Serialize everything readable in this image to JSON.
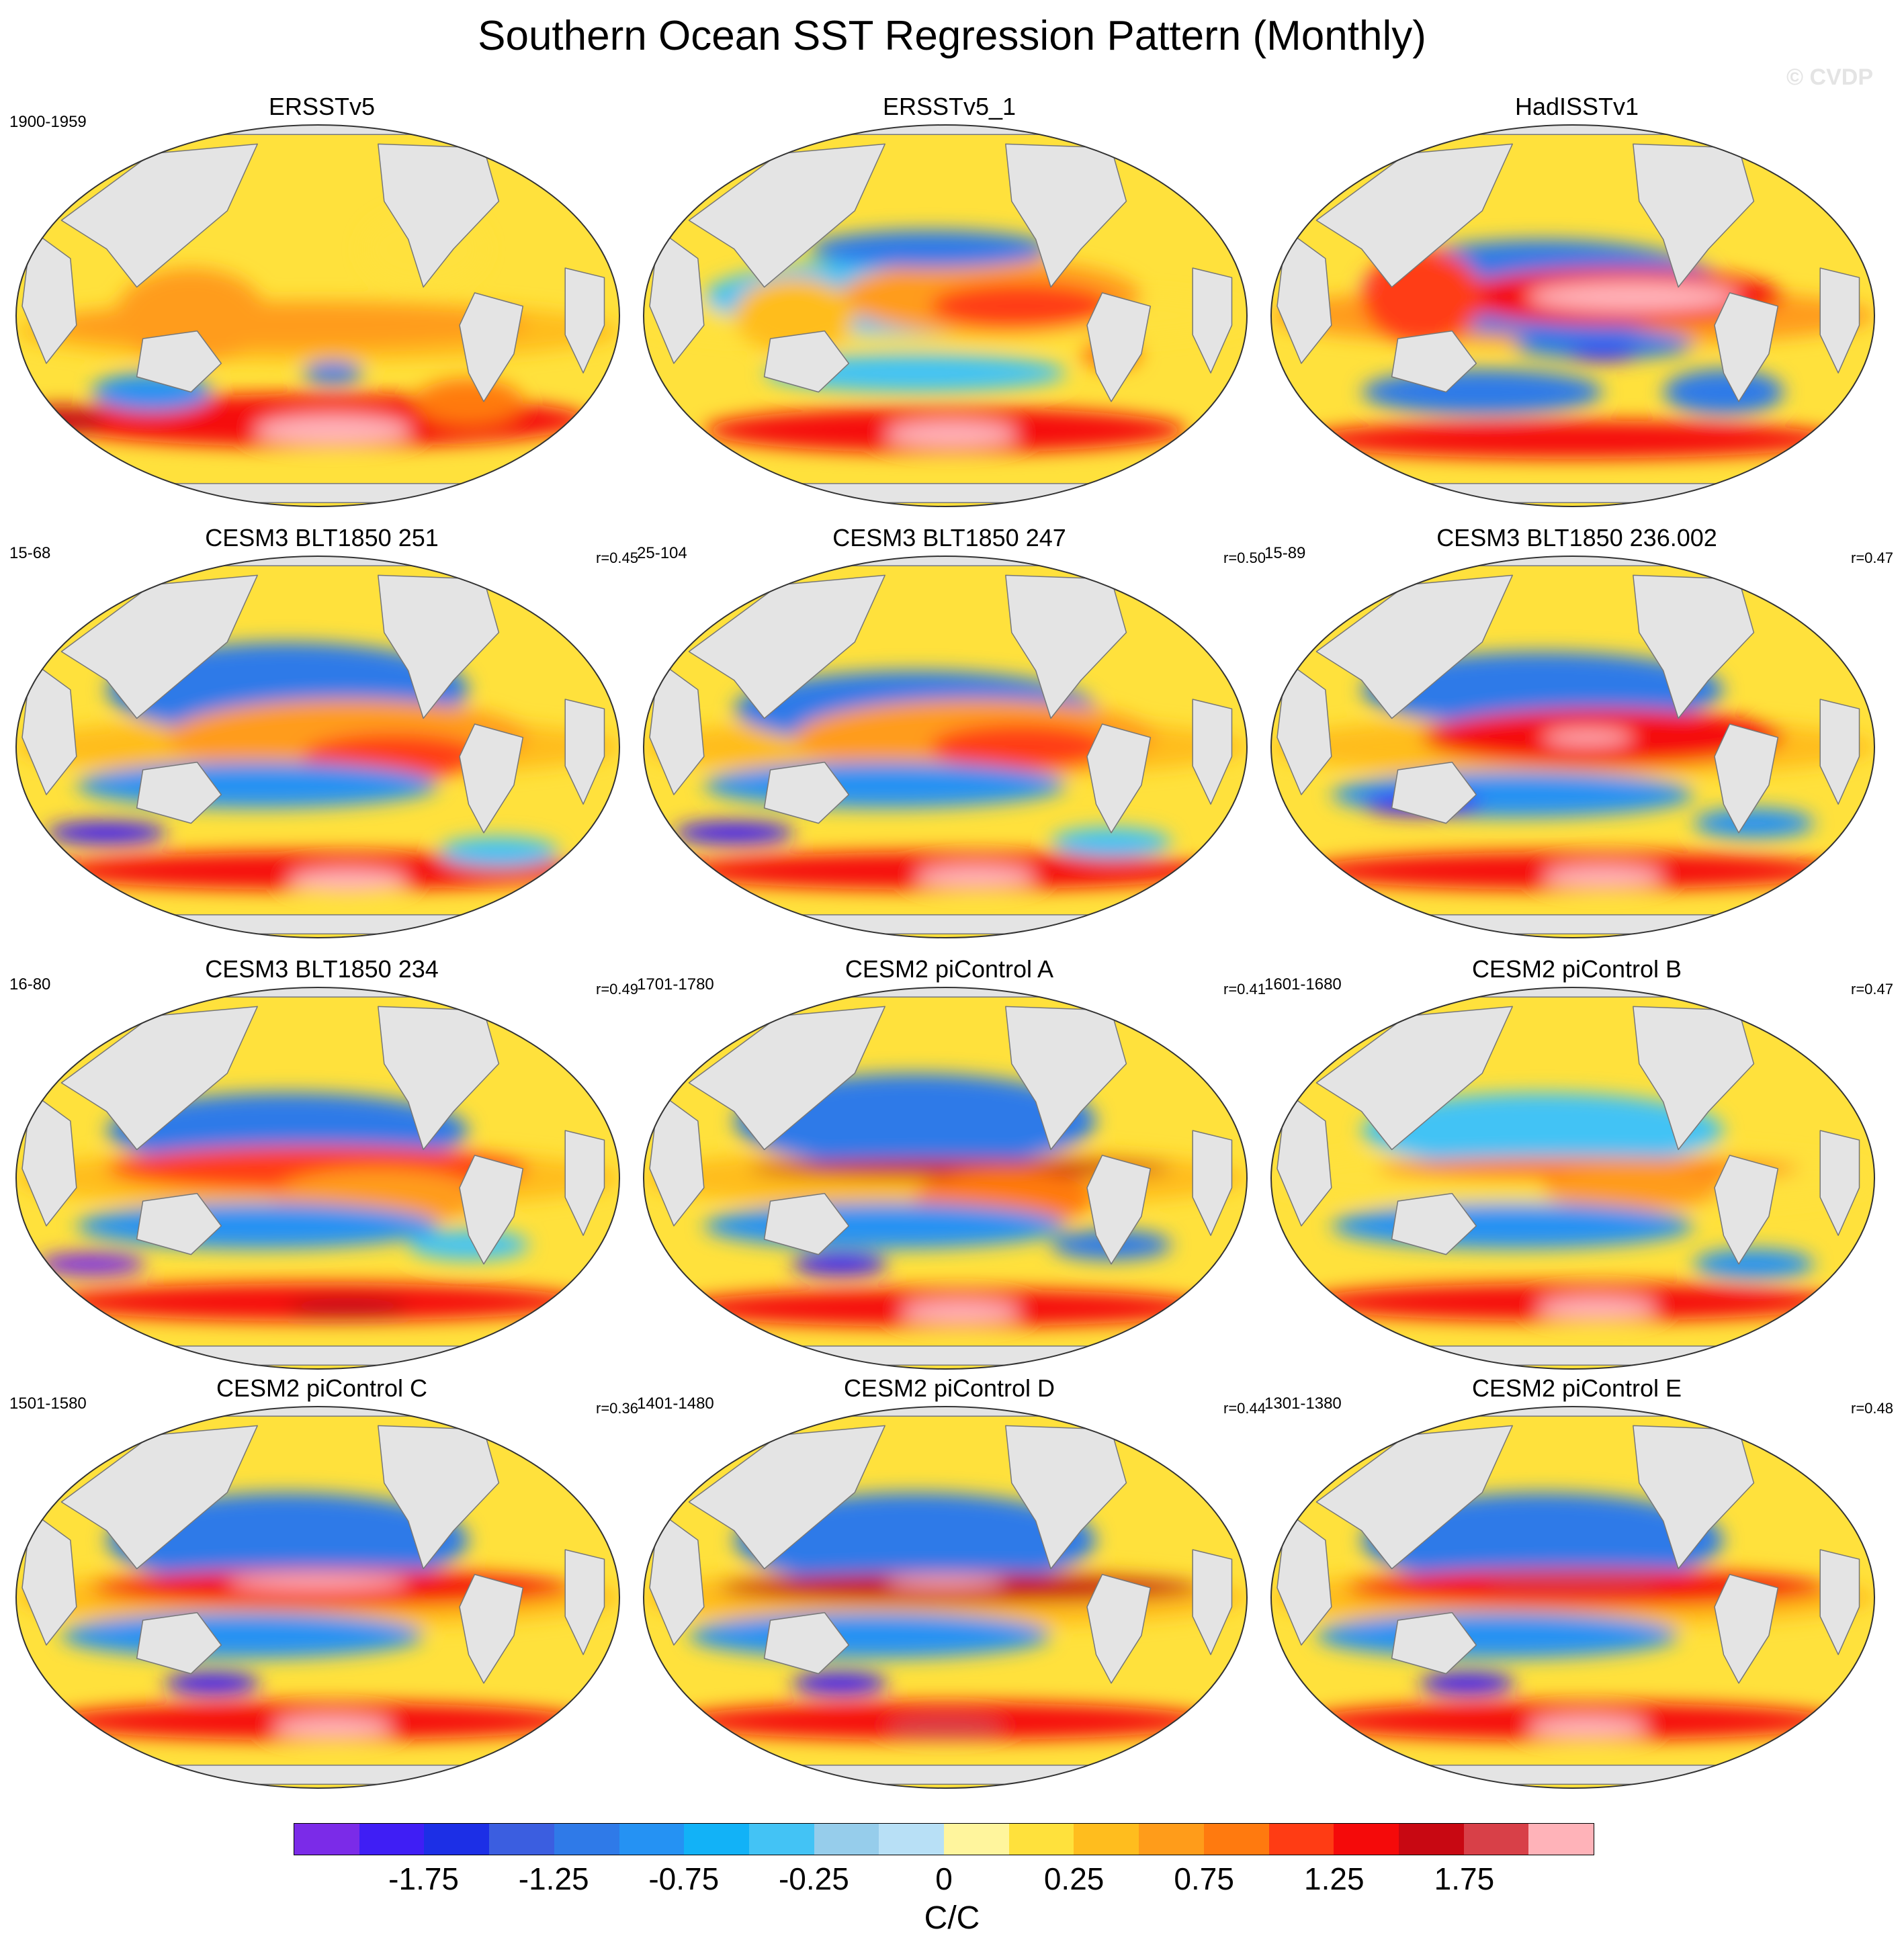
{
  "title": "Southern Ocean SST Regression Pattern (Monthly)",
  "watermark": "© CVDP",
  "chart_data": {
    "type": "heatmap",
    "title": "Southern Ocean SST Regression Pattern (Monthly)",
    "projection": "global ellipse (Robinson-like), Pacific-centered",
    "units": "C/C",
    "colorbar": {
      "levels": [
        -2.0,
        -1.75,
        -1.5,
        -1.25,
        -1.0,
        -0.75,
        -0.5,
        -0.25,
        -0.1,
        0,
        0.1,
        0.25,
        0.5,
        0.75,
        1.0,
        1.25,
        1.5,
        1.75,
        2.0
      ],
      "tick_labels": [
        "-1.75",
        "-1.25",
        "-0.75",
        "-0.25",
        "0",
        "0.25",
        "0.75",
        "1.25",
        "1.75"
      ],
      "tick_boundary_index": [
        1,
        3,
        5,
        7,
        9,
        11,
        13,
        15,
        17
      ],
      "colors": [
        "#7b2be8",
        "#3f1ef5",
        "#1c2fe6",
        "#3b5ee0",
        "#2f7ae8",
        "#2592f3",
        "#12b2f7",
        "#43c3f5",
        "#96cdeb",
        "#b8e0f6",
        "#fff59d",
        "#ffe13c",
        "#ffbd1e",
        "#ff9c1a",
        "#ff7a0f",
        "#ff3c14",
        "#f50a0a",
        "#c80812",
        "#d84048",
        "#ffb3b9"
      ]
    },
    "panels": [
      {
        "name": "ERSSTv5",
        "period": "1900-1959",
        "r": "",
        "blobs": [
          [
            "#ffbd1e",
            0.0,
            -0.08,
            0.16,
            1.0
          ],
          [
            "#ff9c1a",
            -0.1,
            -0.05,
            0.12,
            0.8
          ],
          [
            "#ffe13c",
            0.35,
            0.35,
            0.2,
            0.2
          ],
          [
            "#ff9c1a",
            -0.42,
            0.0,
            0.25,
            0.25
          ],
          [
            "#f50a0a",
            0.0,
            -0.55,
            0.14,
            0.9
          ],
          [
            "#ffb3b9",
            0.05,
            -0.6,
            0.08,
            0.26
          ],
          [
            "#2f7ae8",
            0.05,
            -0.3,
            0.06,
            0.1
          ],
          [
            "#2592f3",
            -0.55,
            -0.4,
            0.1,
            0.2
          ],
          [
            "#c80812",
            -0.85,
            -0.55,
            0.08,
            0.14
          ],
          [
            "#ff7a0f",
            0.5,
            -0.45,
            0.12,
            0.18
          ]
        ]
      },
      {
        "name": "ERSSTv5_1",
        "period": "",
        "r": "",
        "blobs": [
          [
            "#ffe13c",
            0.0,
            0.0,
            0.15,
            1.0
          ],
          [
            "#43c3f5",
            -0.1,
            0.1,
            0.2,
            0.7
          ],
          [
            "#ff9c1a",
            0.15,
            0.1,
            0.2,
            0.5
          ],
          [
            "#ff3c14",
            0.25,
            0.05,
            0.12,
            0.3
          ],
          [
            "#2f7ae8",
            -0.05,
            0.35,
            0.1,
            0.4
          ],
          [
            "#f50a0a",
            0.0,
            -0.6,
            0.12,
            0.8
          ],
          [
            "#ffb3b9",
            0.02,
            -0.62,
            0.07,
            0.22
          ],
          [
            "#43c3f5",
            -0.1,
            -0.3,
            0.1,
            0.5
          ],
          [
            "#ff7a0f",
            0.55,
            -0.2,
            0.08,
            0.1
          ],
          [
            "#ffbd1e",
            -0.5,
            0.0,
            0.2,
            0.2
          ]
        ]
      },
      {
        "name": "HadISSTv1",
        "period": "",
        "r": "",
        "blobs": [
          [
            "#ff9c1a",
            0.0,
            0.0,
            0.16,
            1.0
          ],
          [
            "#2f7ae8",
            -0.1,
            0.15,
            0.25,
            0.6
          ],
          [
            "#f50a0a",
            0.15,
            0.1,
            0.15,
            0.55
          ],
          [
            "#ffb3b9",
            0.2,
            0.1,
            0.08,
            0.35
          ],
          [
            "#2f7ae8",
            0.1,
            -0.15,
            0.08,
            0.3
          ],
          [
            "#3f1ef5",
            0.1,
            -0.2,
            0.04,
            0.12
          ],
          [
            "#2f7ae8",
            -0.3,
            -0.4,
            0.12,
            0.4
          ],
          [
            "#f50a0a",
            0.0,
            -0.65,
            0.1,
            0.9
          ],
          [
            "#ff3c14",
            -0.5,
            0.1,
            0.25,
            0.2
          ],
          [
            "#2f7ae8",
            0.5,
            -0.4,
            0.12,
            0.2
          ]
        ]
      },
      {
        "name": "CESM3 BLT1850 251",
        "period": "15-68",
        "r": "r=0.45",
        "blobs": [
          [
            "#ffbd1e",
            0.0,
            0.0,
            0.16,
            1.0
          ],
          [
            "#2f7ae8",
            -0.1,
            0.3,
            0.25,
            0.6
          ],
          [
            "#ff9c1a",
            0.1,
            0.05,
            0.2,
            0.6
          ],
          [
            "#ff3c14",
            0.25,
            -0.05,
            0.12,
            0.3
          ],
          [
            "#2592f3",
            -0.2,
            -0.2,
            0.12,
            0.6
          ],
          [
            "#3f1ef5",
            -0.7,
            -0.45,
            0.06,
            0.2
          ],
          [
            "#f50a0a",
            0.0,
            -0.65,
            0.1,
            0.9
          ],
          [
            "#ffb3b9",
            0.1,
            -0.7,
            0.06,
            0.2
          ],
          [
            "#c80812",
            -0.45,
            0.55,
            0.05,
            0.05
          ],
          [
            "#43c3f5",
            0.6,
            -0.55,
            0.08,
            0.2
          ]
        ]
      },
      {
        "name": "CESM3 BLT1850 247",
        "period": "25-104",
        "r": "r=0.50",
        "blobs": [
          [
            "#ffbd1e",
            0.0,
            0.0,
            0.16,
            1.0
          ],
          [
            "#2f7ae8",
            -0.1,
            0.2,
            0.2,
            0.6
          ],
          [
            "#ff9c1a",
            0.1,
            0.05,
            0.2,
            0.6
          ],
          [
            "#ff3c14",
            0.25,
            0.0,
            0.12,
            0.3
          ],
          [
            "#2592f3",
            -0.2,
            -0.2,
            0.12,
            0.6
          ],
          [
            "#3f1ef5",
            -0.7,
            -0.45,
            0.06,
            0.2
          ],
          [
            "#f50a0a",
            0.0,
            -0.65,
            0.1,
            0.9
          ],
          [
            "#ffb3b9",
            0.1,
            -0.68,
            0.06,
            0.2
          ],
          [
            "#43c3f5",
            0.55,
            -0.5,
            0.08,
            0.2
          ]
        ]
      },
      {
        "name": "CESM3 BLT1850 236.002",
        "period": "15-89",
        "r": "r=0.47",
        "blobs": [
          [
            "#ffbd1e",
            0.0,
            0.0,
            0.16,
            1.0
          ],
          [
            "#2f7ae8",
            -0.1,
            0.3,
            0.2,
            0.6
          ],
          [
            "#f50a0a",
            0.1,
            0.05,
            0.15,
            0.6
          ],
          [
            "#ffb3b9",
            0.05,
            0.05,
            0.04,
            0.15
          ],
          [
            "#2592f3",
            -0.2,
            -0.25,
            0.12,
            0.6
          ],
          [
            "#3f1ef5",
            -0.5,
            -0.3,
            0.06,
            0.2
          ],
          [
            "#f50a0a",
            0.0,
            -0.65,
            0.1,
            0.9
          ],
          [
            "#ffb3b9",
            0.1,
            -0.68,
            0.06,
            0.2
          ],
          [
            "#2592f3",
            0.6,
            -0.4,
            0.08,
            0.2
          ]
        ]
      },
      {
        "name": "CESM3 BLT1850 234",
        "period": "16-80",
        "r": "r=0.49",
        "blobs": [
          [
            "#ffbd1e",
            0.0,
            0.0,
            0.16,
            1.0
          ],
          [
            "#2f7ae8",
            -0.1,
            0.25,
            0.2,
            0.6
          ],
          [
            "#ff3c14",
            0.0,
            0.05,
            0.12,
            0.7
          ],
          [
            "#ff9c1a",
            0.2,
            -0.1,
            0.15,
            0.35
          ],
          [
            "#2592f3",
            -0.2,
            -0.25,
            0.12,
            0.6
          ],
          [
            "#7b2be8",
            -0.75,
            -0.45,
            0.06,
            0.18
          ],
          [
            "#f50a0a",
            0.0,
            -0.65,
            0.1,
            0.9
          ],
          [
            "#c80812",
            0.1,
            -0.68,
            0.06,
            0.2
          ],
          [
            "#43c3f5",
            0.5,
            -0.35,
            0.08,
            0.2
          ]
        ]
      },
      {
        "name": "CESM2 piControl A",
        "period": "1701-1780",
        "r": "r=0.41",
        "blobs": [
          [
            "#ffbd1e",
            0.0,
            0.0,
            0.16,
            1.0
          ],
          [
            "#2f7ae8",
            -0.1,
            0.3,
            0.25,
            0.6
          ],
          [
            "#c80812",
            0.05,
            0.05,
            0.05,
            0.7
          ],
          [
            "#ff7a0f",
            0.2,
            -0.1,
            0.15,
            0.3
          ],
          [
            "#2592f3",
            -0.2,
            -0.25,
            0.12,
            0.6
          ],
          [
            "#3f1ef5",
            -0.35,
            -0.45,
            0.06,
            0.16
          ],
          [
            "#f50a0a",
            0.0,
            -0.68,
            0.1,
            0.9
          ],
          [
            "#ffb3b9",
            0.05,
            -0.7,
            0.06,
            0.2
          ],
          [
            "#2f7ae8",
            0.55,
            -0.35,
            0.08,
            0.2
          ]
        ]
      },
      {
        "name": "CESM2 piControl B",
        "period": "1601-1680",
        "r": "r=0.47",
        "blobs": [
          [
            "#ffe13c",
            0.0,
            0.0,
            0.16,
            1.0
          ],
          [
            "#43c3f5",
            -0.1,
            0.25,
            0.2,
            0.6
          ],
          [
            "#ff7a0f",
            0.05,
            0.05,
            0.06,
            0.7
          ],
          [
            "#ff9c1a",
            0.2,
            -0.05,
            0.12,
            0.3
          ],
          [
            "#2592f3",
            -0.2,
            -0.25,
            0.12,
            0.6
          ],
          [
            "#f50a0a",
            0.0,
            -0.65,
            0.1,
            0.9
          ],
          [
            "#ffb3b9",
            0.08,
            -0.68,
            0.06,
            0.2
          ],
          [
            "#2592f3",
            0.6,
            -0.45,
            0.08,
            0.2
          ]
        ]
      },
      {
        "name": "CESM2 piControl C",
        "period": "1501-1580",
        "r": "r=0.36",
        "blobs": [
          [
            "#ffbd1e",
            0.0,
            0.0,
            0.16,
            1.0
          ],
          [
            "#2f7ae8",
            -0.1,
            0.3,
            0.25,
            0.6
          ],
          [
            "#f50a0a",
            0.05,
            0.05,
            0.1,
            0.8
          ],
          [
            "#ffb3b9",
            0.0,
            0.08,
            0.04,
            0.3
          ],
          [
            "#2592f3",
            -0.25,
            -0.2,
            0.12,
            0.6
          ],
          [
            "#3f1ef5",
            -0.35,
            -0.45,
            0.06,
            0.16
          ],
          [
            "#f50a0a",
            0.0,
            -0.65,
            0.1,
            0.9
          ],
          [
            "#ffb3b9",
            0.05,
            -0.68,
            0.06,
            0.2
          ]
        ]
      },
      {
        "name": "CESM2 piControl D",
        "period": "1401-1480",
        "r": "r=0.44",
        "blobs": [
          [
            "#ffbd1e",
            0.0,
            0.0,
            0.16,
            1.0
          ],
          [
            "#2f7ae8",
            -0.1,
            0.3,
            0.25,
            0.6
          ],
          [
            "#c80812",
            0.05,
            0.05,
            0.08,
            0.8
          ],
          [
            "#ffb3b9",
            0.0,
            0.08,
            0.03,
            0.2
          ],
          [
            "#2592f3",
            -0.25,
            -0.2,
            0.12,
            0.6
          ],
          [
            "#3f1ef5",
            -0.35,
            -0.45,
            0.06,
            0.16
          ],
          [
            "#f50a0a",
            0.0,
            -0.65,
            0.1,
            0.9
          ],
          [
            "#d84048",
            0.0,
            -0.68,
            0.06,
            0.2
          ]
        ]
      },
      {
        "name": "CESM2 piControl E",
        "period": "1301-1380",
        "r": "r=0.48",
        "blobs": [
          [
            "#ffbd1e",
            0.0,
            0.0,
            0.16,
            1.0
          ],
          [
            "#2f7ae8",
            -0.1,
            0.3,
            0.25,
            0.6
          ],
          [
            "#f50a0a",
            0.05,
            0.05,
            0.1,
            0.8
          ],
          [
            "#d84048",
            0.0,
            0.08,
            0.04,
            0.3
          ],
          [
            "#2592f3",
            -0.25,
            -0.2,
            0.12,
            0.6
          ],
          [
            "#3f1ef5",
            -0.35,
            -0.45,
            0.06,
            0.16
          ],
          [
            "#f50a0a",
            0.0,
            -0.65,
            0.1,
            0.9
          ],
          [
            "#ffb3b9",
            0.05,
            -0.68,
            0.06,
            0.2
          ]
        ]
      }
    ]
  }
}
